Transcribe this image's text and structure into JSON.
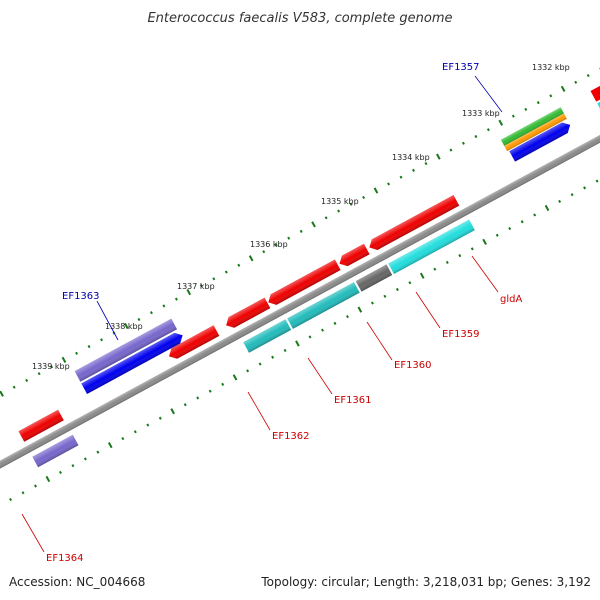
{
  "title": "Enterococcus faecalis V583, complete genome",
  "footer": {
    "accession": "Accession: NC_004668",
    "summary": "Topology: circular; Length: 3,218,031 bp; Genes: 3,192"
  },
  "kbp_labels": [
    "1332 kbp",
    "1333 kbp",
    "1334 kbp",
    "1335 kbp",
    "1336 kbp",
    "1337 kbp",
    "1338 kbp",
    "1339 kbp"
  ],
  "gene_labels": {
    "ef1357": "EF1357",
    "ef1363": "EF1363",
    "glda": "gldA",
    "ef1359": "EF1359",
    "ef1360": "EF1360",
    "ef1361": "EF1361",
    "ef1362": "EF1362",
    "ef1364": "EF1364"
  },
  "colors": {
    "forward_label": "#0000aa",
    "reverse_label": "#cc0000",
    "backbone": "#808080",
    "tick": "#1a7a1a",
    "cds_red": "#ee0000",
    "cds_cyan": "#22dddd",
    "cds_teal": "#22bbbb",
    "cds_blue": "#0000ee",
    "cds_purple": "#7766cc",
    "cds_green": "#33bb33",
    "cds_orange": "#ff9900",
    "cds_gray": "#666666"
  }
}
